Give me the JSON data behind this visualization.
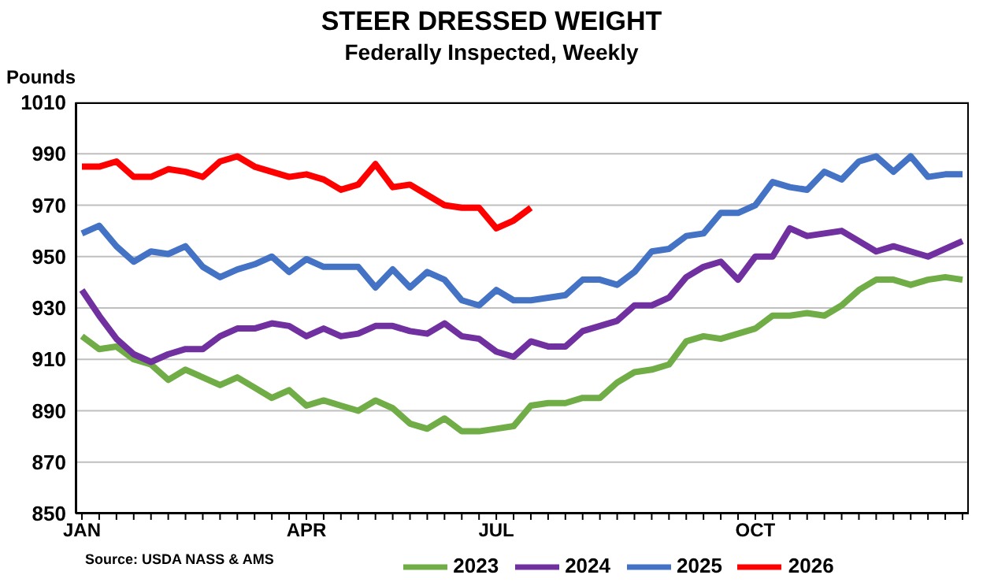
{
  "chart_data": {
    "type": "line",
    "title": "STEER DRESSED WEIGHT",
    "subtitle": "Federally Inspected, Weekly",
    "ylabel": "Pounds",
    "categories": [
      "JAN",
      null,
      null,
      null,
      null,
      null,
      null,
      null,
      null,
      null,
      null,
      null,
      null,
      "APR",
      null,
      null,
      null,
      null,
      null,
      null,
      null,
      null,
      null,
      null,
      "JUL",
      null,
      null,
      null,
      null,
      null,
      null,
      null,
      null,
      null,
      null,
      null,
      null,
      null,
      null,
      "OCT",
      null,
      null,
      null,
      null,
      null,
      null,
      null,
      null,
      null,
      null,
      null,
      null
    ],
    "series": [
      {
        "name": "2023",
        "color": "#70ad47",
        "values": [
          919,
          914,
          915,
          910,
          908,
          902,
          906,
          903,
          900,
          903,
          899,
          895,
          898,
          892,
          894,
          892,
          890,
          894,
          891,
          885,
          883,
          887,
          882,
          882,
          883,
          884,
          892,
          893,
          893,
          895,
          895,
          901,
          905,
          906,
          908,
          917,
          919,
          918,
          920,
          922,
          927,
          927,
          928,
          927,
          931,
          937,
          941,
          941,
          939,
          941,
          942,
          941
        ]
      },
      {
        "name": "2024",
        "color": "#7030a0",
        "values": [
          937,
          927,
          918,
          912,
          909,
          912,
          914,
          914,
          919,
          922,
          922,
          924,
          923,
          919,
          922,
          919,
          920,
          923,
          923,
          921,
          920,
          924,
          919,
          918,
          913,
          911,
          917,
          915,
          915,
          921,
          923,
          925,
          931,
          931,
          934,
          942,
          946,
          948,
          941,
          950,
          950,
          961,
          958,
          959,
          960,
          956,
          952,
          954,
          952,
          950,
          953,
          956
        ]
      },
      {
        "name": "2025",
        "color": "#4472c4",
        "values": [
          959,
          962,
          954,
          948,
          952,
          951,
          954,
          946,
          942,
          945,
          947,
          950,
          944,
          949,
          946,
          946,
          946,
          938,
          945,
          938,
          944,
          941,
          933,
          931,
          937,
          933,
          933,
          934,
          935,
          941,
          941,
          939,
          944,
          952,
          953,
          958,
          959,
          967,
          967,
          970,
          979,
          977,
          976,
          983,
          980,
          987,
          989,
          983,
          989,
          981,
          982,
          982
        ]
      },
      {
        "name": "2026",
        "color": "#ff0000",
        "values": [
          985,
          985,
          987,
          981,
          981,
          984,
          983,
          981,
          987,
          989,
          985,
          983,
          981,
          982,
          980,
          976,
          978,
          986,
          977,
          978,
          974,
          970,
          969,
          969,
          961,
          964,
          969,
          null,
          null,
          null,
          null,
          null,
          null,
          null,
          null,
          null,
          null,
          null,
          null,
          null,
          null,
          null,
          null,
          null,
          null,
          null,
          null,
          null,
          null,
          null,
          null,
          null
        ]
      }
    ],
    "ylim": [
      850,
      1010
    ],
    "yticks": [
      850,
      870,
      890,
      910,
      930,
      950,
      970,
      990,
      1010
    ],
    "grid": "y",
    "legend": "bottom",
    "marker": "none",
    "line_style": "solid",
    "annotations": [
      "Source: USDA NASS & AMS"
    ]
  }
}
